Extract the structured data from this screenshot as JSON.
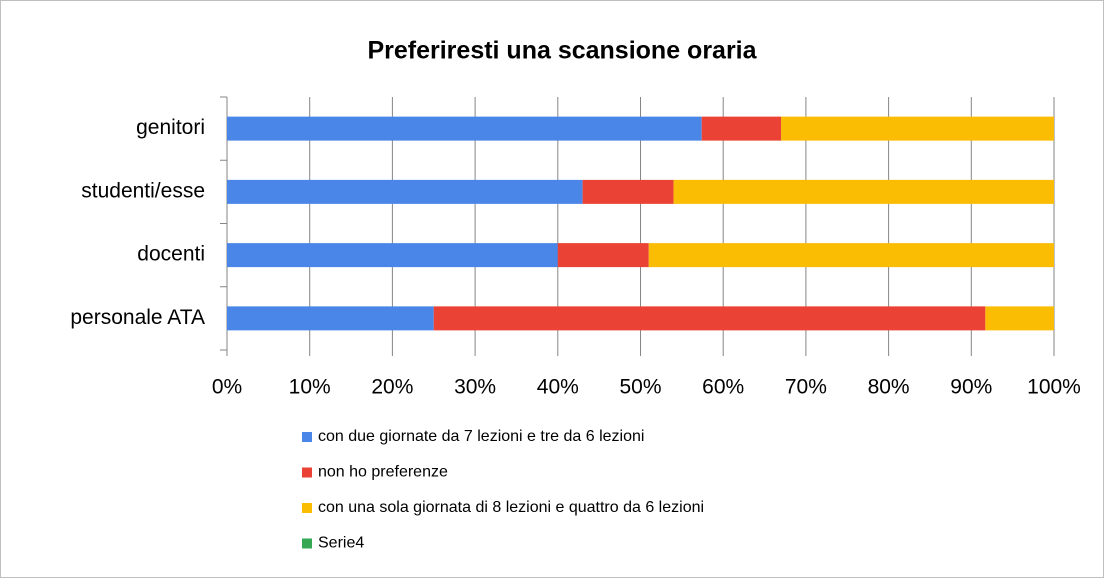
{
  "chart_data": {
    "type": "stacked-bar-horizontal",
    "title": "Preferiresti una scansione oraria",
    "categories": [
      "genitori",
      "studenti/esse",
      "docenti",
      "personale ATA"
    ],
    "series": [
      {
        "name": "con due giornate da 7 lezioni e tre da 6 lezioni",
        "color": "#4a86e8",
        "values": [
          57.4,
          43,
          40,
          25
        ]
      },
      {
        "name": "non ho preferenze",
        "color": "#ea4335",
        "values": [
          9.6,
          11,
          11,
          66.7
        ]
      },
      {
        "name": "con una sola giornata di 8 lezioni e quattro da 6 lezioni",
        "color": "#fbbc04",
        "values": [
          33,
          46,
          49,
          8.3
        ]
      },
      {
        "name": "Serie4",
        "color": "#34a853",
        "values": [
          0,
          0,
          0,
          0
        ]
      }
    ],
    "xlim": [
      0,
      100
    ],
    "xticks": [
      {
        "value": 0,
        "label": "0%"
      },
      {
        "value": 10,
        "label": "10%"
      },
      {
        "value": 20,
        "label": "20%"
      },
      {
        "value": 30,
        "label": "30%"
      },
      {
        "value": 40,
        "label": "40%"
      },
      {
        "value": 50,
        "label": "50%"
      },
      {
        "value": 60,
        "label": "60%"
      },
      {
        "value": 70,
        "label": "70%"
      },
      {
        "value": 80,
        "label": "80%"
      },
      {
        "value": 90,
        "label": "90%"
      },
      {
        "value": 100,
        "label": "100%"
      }
    ],
    "grid": true,
    "legend": "bottom"
  }
}
